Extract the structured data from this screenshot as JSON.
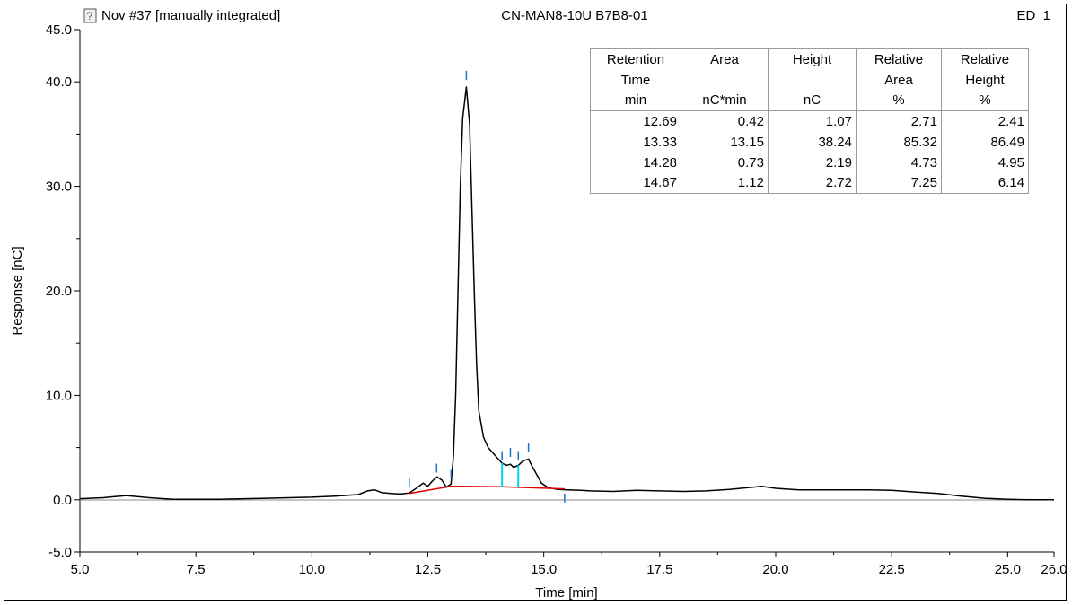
{
  "header": {
    "left_title": "Nov #37 [manually integrated]",
    "center_title": "CN-MAN8-10U B7B8-01",
    "right_title": "ED_1",
    "icon": "injection-info-icon"
  },
  "chart_data": {
    "type": "line",
    "xlabel": "Time [min]",
    "ylabel": "Response [nC]",
    "xlim": [
      5.0,
      26.0
    ],
    "ylim": [
      -5.0,
      45.0
    ],
    "x_ticks": [
      "5.0",
      "7.5",
      "10.0",
      "12.5",
      "15.0",
      "17.5",
      "20.0",
      "22.5",
      "25.0",
      "26.0"
    ],
    "y_ticks": [
      "-5.0",
      "0.0",
      "10.0",
      "20.0",
      "30.0",
      "40.0",
      "45.0"
    ],
    "grid": false,
    "colors": {
      "trace": "#000000",
      "baseline": "#e00000",
      "delimiter": "#00d4e8",
      "marker": "#1f6fd0"
    },
    "series": [
      {
        "x": [
          5.0,
          5.5,
          6.0,
          6.5,
          7.0,
          8.0,
          9.0,
          10.0,
          10.5,
          11.0,
          11.2,
          11.35,
          11.5,
          11.7,
          11.9,
          12.1,
          12.25,
          12.4,
          12.5,
          12.6,
          12.7,
          12.8,
          12.9,
          13.0,
          13.05,
          13.1,
          13.15,
          13.2,
          13.25,
          13.33,
          13.4,
          13.45,
          13.5,
          13.55,
          13.6,
          13.7,
          13.8,
          13.9,
          14.0,
          14.1,
          14.2,
          14.28,
          14.35,
          14.45,
          14.55,
          14.67,
          14.75,
          14.85,
          14.95,
          15.1,
          15.3,
          15.5,
          15.8,
          16.0,
          16.5,
          17.0,
          17.5,
          18.0,
          18.5,
          19.0,
          19.5,
          19.7,
          20.0,
          20.5,
          21.0,
          21.5,
          22.0,
          22.5,
          23.0,
          23.5,
          24.0,
          24.5,
          25.0,
          25.5,
          26.0
        ],
        "y": [
          0.1,
          0.2,
          0.4,
          0.2,
          0.05,
          0.05,
          0.15,
          0.25,
          0.35,
          0.5,
          0.85,
          0.95,
          0.7,
          0.6,
          0.55,
          0.65,
          1.1,
          1.6,
          1.3,
          1.8,
          2.2,
          1.9,
          1.2,
          1.5,
          4.0,
          10.0,
          20.0,
          30.0,
          36.5,
          39.5,
          36.0,
          28.0,
          20.0,
          13.0,
          8.5,
          6.0,
          5.0,
          4.5,
          4.0,
          3.5,
          3.3,
          3.4,
          3.1,
          3.3,
          3.7,
          3.9,
          3.2,
          2.4,
          1.6,
          1.15,
          1.0,
          0.95,
          0.9,
          0.85,
          0.8,
          0.9,
          0.85,
          0.8,
          0.85,
          1.0,
          1.2,
          1.3,
          1.1,
          0.95,
          0.95,
          0.95,
          0.95,
          0.9,
          0.75,
          0.6,
          0.35,
          0.15,
          0.05,
          0.0,
          0.0
        ]
      }
    ],
    "baseline": {
      "x": [
        12.1,
        13.0,
        14.1,
        15.45
      ],
      "y": [
        0.6,
        1.3,
        1.25,
        1.05
      ]
    },
    "delimiters": [
      {
        "x": 14.1,
        "y_low": 1.25,
        "y_high": 3.5
      },
      {
        "x": 14.45,
        "y_low": 1.2,
        "y_high": 3.3
      }
    ],
    "peak_markers": [
      {
        "x": 12.1,
        "y": 1.2,
        "dir": "up"
      },
      {
        "x": 12.69,
        "y": 2.6,
        "dir": "up"
      },
      {
        "x": 13.0,
        "y": 2.0,
        "dir": "up"
      },
      {
        "x": 13.33,
        "y": 40.2,
        "dir": "up"
      },
      {
        "x": 14.1,
        "y": 3.8,
        "dir": "up"
      },
      {
        "x": 14.28,
        "y": 4.1,
        "dir": "up"
      },
      {
        "x": 14.45,
        "y": 3.8,
        "dir": "up"
      },
      {
        "x": 14.67,
        "y": 4.6,
        "dir": "up"
      },
      {
        "x": 15.45,
        "y": 0.6,
        "dir": "down"
      }
    ],
    "table": {
      "header_rows": [
        [
          "Retention",
          "Area",
          "Height",
          "Relative",
          "Relative"
        ],
        [
          "Time",
          "",
          "",
          "Area",
          "Height"
        ],
        [
          "min",
          "nC*min",
          "nC",
          "%",
          "%"
        ]
      ],
      "rows": [
        [
          "12.69",
          "0.42",
          "1.07",
          "2.71",
          "2.41"
        ],
        [
          "13.33",
          "13.15",
          "38.24",
          "85.32",
          "86.49"
        ],
        [
          "14.28",
          "0.73",
          "2.19",
          "4.73",
          "4.95"
        ],
        [
          "14.67",
          "1.12",
          "2.72",
          "7.25",
          "6.14"
        ]
      ]
    }
  }
}
